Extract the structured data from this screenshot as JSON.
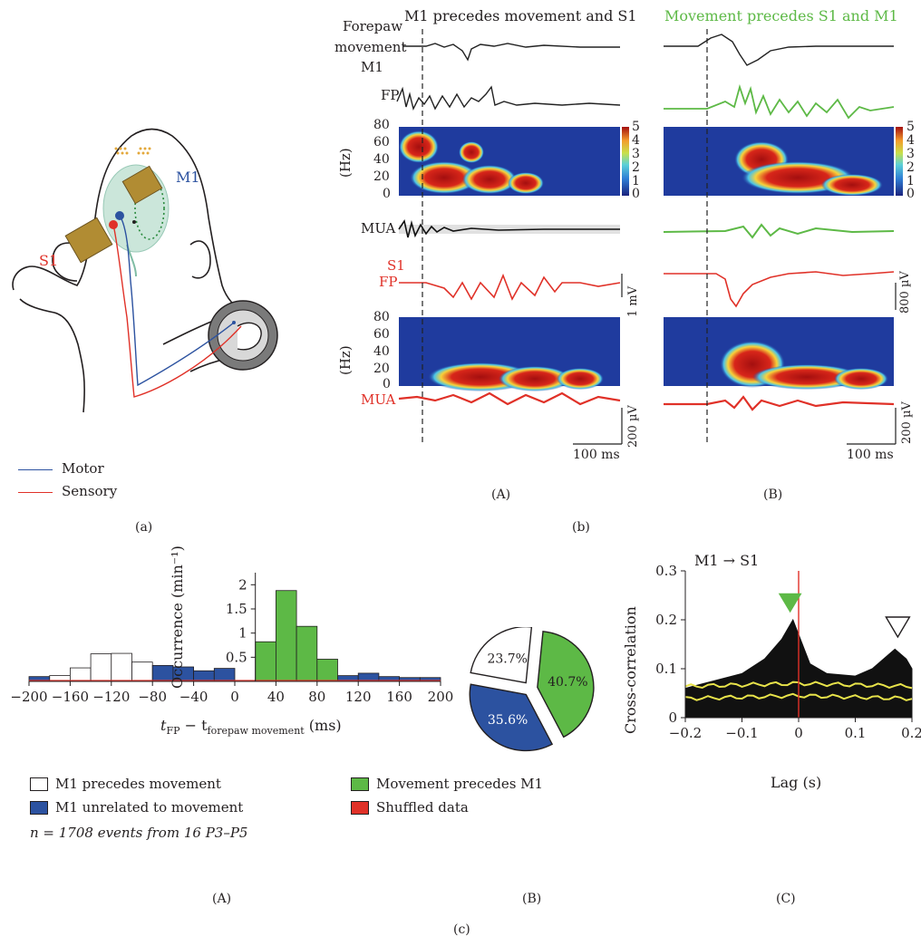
{
  "panel_a": {
    "m1_label": "M1",
    "s1_label": "S1",
    "legend": [
      {
        "label": "Motor",
        "color": "#2c52a0"
      },
      {
        "label": "Sensory",
        "color": "#e03128"
      }
    ],
    "caption": "(a)"
  },
  "panel_b": {
    "col_a_title": "M1 precedes movement and S1",
    "col_b_title": "Movement precedes S1 and M1",
    "col_b_title_color": "#5db946",
    "forepaw_label_1": "Forepaw",
    "forepaw_label_2": "movement",
    "m1_label": "M1",
    "fp_label": "FP",
    "hz_label": "(Hz)",
    "freq_ticks": [
      "80",
      "60",
      "40",
      "20",
      "0"
    ],
    "colorbar_ticks": [
      "5",
      "4",
      "3",
      "2",
      "1",
      "0"
    ],
    "mua_label": "MUA",
    "s1_label": "S1",
    "s1_fp_label": "FP",
    "s1_mua_label": "MUA",
    "scale_1mv": "1 mV",
    "scale_800uv": "800 µV",
    "scale_200uv_a": "200 µV",
    "scale_200uv_b": "200 µV",
    "scale_100ms_a": "100 ms",
    "scale_100ms_b": "100 ms",
    "sub_a": "(A)",
    "sub_b": "(B)",
    "caption": "(b)"
  },
  "panel_c": {
    "hist_ylabel": "Occurrence (min⁻¹)",
    "hist_xlabel_main": "t",
    "hist_xlabel_sub1": "FP",
    "hist_xlabel_mid": " − t",
    "hist_xlabel_sub2": "forepaw movement",
    "hist_xlabel_unit": " (ms)",
    "legend": [
      {
        "label": "M1 precedes movement",
        "color": "#ffffff"
      },
      {
        "label": "Movement precedes M1",
        "color": "#5db946"
      },
      {
        "label": "M1 unrelated to movement",
        "color": "#2c52a0"
      },
      {
        "label": "Shuffled data",
        "color": "#e03128"
      }
    ],
    "n_note": "n = 1708 events from 16 P3–P5",
    "pie_labels": [
      "40.7%",
      "35.6%",
      "23.7%"
    ],
    "xcorr_title": "M1 → S1",
    "xcorr_ylabel": "Cross-correlation",
    "xcorr_xlabel": "Lag (s)",
    "sub_a": "(A)",
    "sub_b": "(B)",
    "sub_c": "(C)",
    "caption": "(c)"
  },
  "chart_data": [
    {
      "type": "bar",
      "name": "histogram",
      "x": [
        -190,
        -170,
        -150,
        -130,
        -110,
        -90,
        -70,
        -50,
        -30,
        -10,
        10,
        30,
        50,
        70,
        90,
        110,
        130,
        150,
        170,
        190
      ],
      "series": [
        {
          "name": "M1 precedes movement",
          "color": "#ffffff",
          "values": [
            0,
            0.12,
            0.28,
            0.57,
            0.58,
            0.4,
            0,
            0,
            0,
            0,
            0,
            0,
            0,
            0,
            0,
            0,
            0,
            0,
            0,
            0
          ]
        },
        {
          "name": "M1 unrelated to movement",
          "color": "#2c52a0",
          "values": [
            0.1,
            0,
            0,
            0,
            0,
            0,
            0.33,
            0.3,
            0.22,
            0.27,
            0,
            0,
            0,
            0,
            0,
            0.12,
            0.17,
            0.1,
            0.08,
            0.08
          ]
        },
        {
          "name": "Movement precedes M1",
          "color": "#5db946",
          "values": [
            0,
            0,
            0,
            0,
            0,
            0,
            0,
            0,
            0,
            0,
            0,
            0.82,
            1.88,
            1.14,
            0.46,
            0,
            0,
            0,
            0,
            0
          ]
        },
        {
          "name": "Shuffled data",
          "color": "#e03128",
          "values": [
            0.03,
            0.03,
            0.03,
            0.03,
            0.03,
            0.03,
            0.03,
            0.03,
            0.03,
            0.03,
            0.03,
            0.03,
            0.03,
            0.03,
            0.03,
            0.03,
            0.03,
            0.03,
            0.03,
            0.03
          ]
        }
      ],
      "xticks": [
        -200,
        -160,
        -120,
        -80,
        -40,
        0,
        40,
        80,
        120,
        160,
        200
      ],
      "xtick_labels": [
        "−200",
        "−160",
        "−120",
        "−80",
        "−40",
        "0",
        "40",
        "80",
        "120",
        "160",
        "200"
      ],
      "yticks": [
        0.5,
        1,
        1.5,
        2
      ],
      "ytick_labels": [
        "0.5",
        "1",
        "1.5",
        "2"
      ],
      "xlim": [
        -200,
        200
      ],
      "ylim": [
        0,
        2.1
      ]
    },
    {
      "type": "pie",
      "name": "pie",
      "slices": [
        {
          "label": "40.7%",
          "value": 40.7,
          "color": "#5db946"
        },
        {
          "label": "35.6%",
          "value": 35.6,
          "color": "#2c52a0"
        },
        {
          "label": "23.7%",
          "value": 23.7,
          "color": "#ffffff"
        }
      ]
    },
    {
      "type": "area",
      "name": "cross-correlation",
      "x": [
        -0.2,
        -0.15,
        -0.1,
        -0.06,
        -0.03,
        -0.01,
        0,
        0.02,
        0.05,
        0.1,
        0.13,
        0.16,
        0.17,
        0.19,
        0.2
      ],
      "values": [
        0.06,
        0.075,
        0.09,
        0.12,
        0.16,
        0.2,
        0.17,
        0.11,
        0.09,
        0.085,
        0.1,
        0.13,
        0.14,
        0.12,
        0.1
      ],
      "shuffled_band": {
        "upper": 0.07,
        "lower": 0.045,
        "color": "#e8e34a"
      },
      "xlim": [
        -0.2,
        0.2
      ],
      "ylim": [
        0,
        0.3
      ],
      "xticks": [
        -0.2,
        -0.1,
        0,
        0.1,
        0.2
      ],
      "xtick_labels": [
        "−0.2",
        "−0.1",
        "0",
        "0.1",
        "0.2"
      ],
      "yticks": [
        0,
        0.1,
        0.2,
        0.3
      ],
      "ytick_labels": [
        "0",
        "0.1",
        "0.2",
        "0.3"
      ]
    }
  ]
}
